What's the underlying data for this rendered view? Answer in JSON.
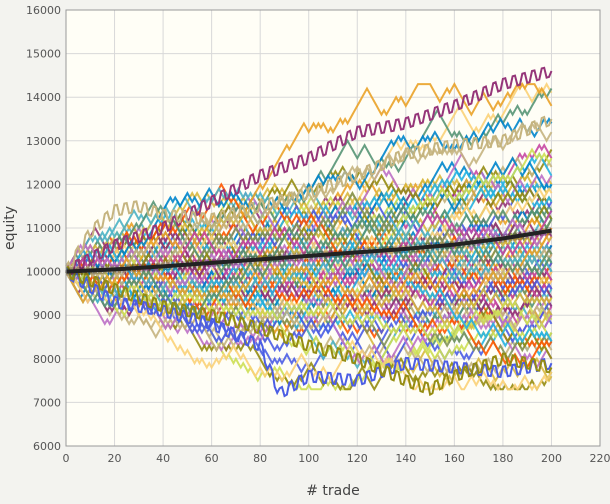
{
  "chart_data": {
    "type": "line",
    "title": "",
    "xlabel": "# trade",
    "ylabel": "equity",
    "xlim": [
      0,
      220
    ],
    "ylim": [
      6000,
      16000
    ],
    "x_ticks": [
      0,
      20,
      40,
      60,
      80,
      100,
      120,
      140,
      160,
      180,
      200,
      220
    ],
    "y_ticks": [
      6000,
      7000,
      8000,
      9000,
      10000,
      11000,
      12000,
      13000,
      14000,
      15000,
      16000
    ],
    "grid": true,
    "legend": "none",
    "background_color": "#fffef6",
    "page_color": "#f3f3ef",
    "grid_color": "#d8d8d8",
    "num_simulated_series": 100,
    "trades_per_series": 200,
    "start_equity": 10000,
    "step_size": 100,
    "series_colors": [
      "#4bb2c5",
      "#eaa228",
      "#c5b47f",
      "#579575",
      "#839557",
      "#958c12",
      "#953579",
      "#4b5de4",
      "#d8b83f",
      "#ff5800",
      "#0085cc",
      "#c747a3",
      "#cddf54",
      "#fbd178",
      "#26b4e3",
      "#bd70c7"
    ],
    "average_series": {
      "name": "",
      "color": "#222222",
      "x": [
        0,
        20,
        40,
        60,
        80,
        100,
        120,
        140,
        160,
        180,
        200
      ],
      "values": [
        10000,
        10050,
        10120,
        10200,
        10280,
        10360,
        10440,
        10520,
        10620,
        10760,
        10940
      ]
    },
    "selected_paths": [
      {
        "color": "#4b5de4",
        "x": [
          0,
          20,
          40,
          60,
          80,
          88,
          100,
          120,
          140,
          160,
          180,
          200
        ],
        "values": [
          10000,
          9300,
          9100,
          8800,
          8300,
          7200,
          7600,
          7500,
          7900,
          7800,
          7700,
          7900
        ]
      },
      {
        "color": "#953579",
        "x": [
          0,
          20,
          40,
          60,
          80,
          100,
          120,
          140,
          160,
          180,
          200
        ],
        "values": [
          10000,
          10600,
          11000,
          11600,
          12200,
          12600,
          13200,
          13400,
          13800,
          14300,
          14600
        ]
      },
      {
        "color": "#958c12",
        "x": [
          0,
          20,
          40,
          60,
          80,
          100,
          120,
          140,
          150,
          160,
          180,
          200
        ],
        "values": [
          10000,
          9600,
          9200,
          9000,
          8700,
          8300,
          8000,
          7500,
          7300,
          7600,
          8000,
          7800
        ]
      },
      {
        "color": "#c5b47f",
        "x": [
          0,
          10,
          20,
          30,
          40,
          60,
          80,
          100,
          120,
          140,
          160,
          180,
          200
        ],
        "values": [
          10000,
          10900,
          11400,
          11500,
          11300,
          11200,
          11500,
          11800,
          12200,
          12700,
          12900,
          13000,
          13500
        ]
      }
    ]
  }
}
